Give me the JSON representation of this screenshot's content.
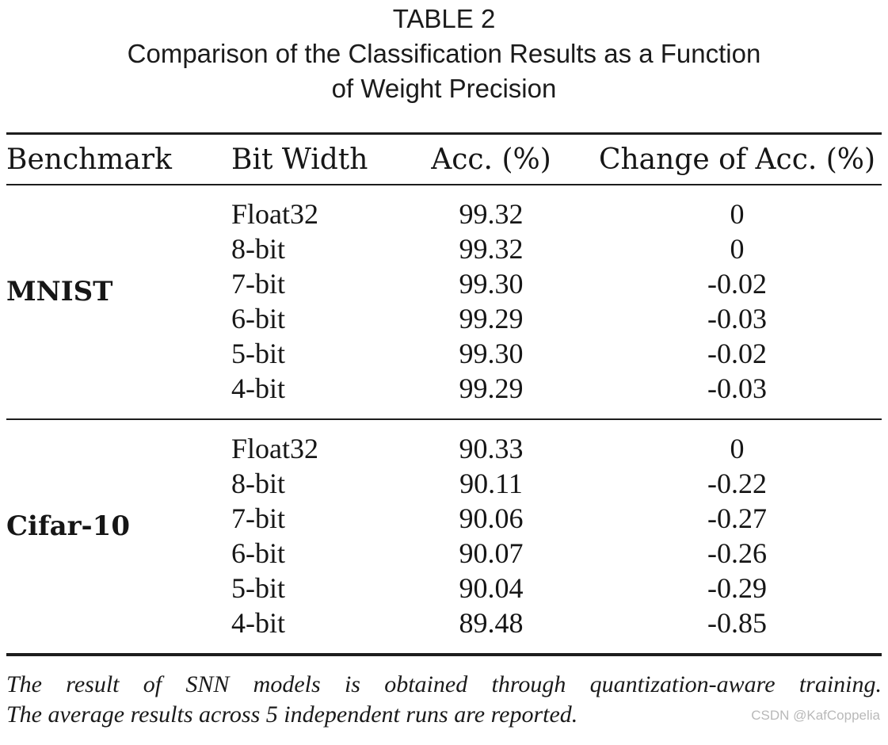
{
  "title": {
    "table_number": "TABLE 2",
    "caption_line1": "Comparison of the Classification Results as a Function",
    "caption_line2": "of Weight Precision"
  },
  "table": {
    "columns": [
      "Benchmark",
      "Bit Width",
      "Acc. (%)",
      "Change of Acc. (%)"
    ],
    "sections": [
      {
        "benchmark": "MNIST",
        "rows": [
          {
            "bit_width": "Float32",
            "acc": "99.32",
            "change": "0"
          },
          {
            "bit_width": "8-bit",
            "acc": "99.32",
            "change": "0"
          },
          {
            "bit_width": "7-bit",
            "acc": "99.30",
            "change": "-0.02"
          },
          {
            "bit_width": "6-bit",
            "acc": "99.29",
            "change": "-0.03"
          },
          {
            "bit_width": "5-bit",
            "acc": "99.30",
            "change": "-0.02"
          },
          {
            "bit_width": "4-bit",
            "acc": "99.29",
            "change": "-0.03"
          }
        ]
      },
      {
        "benchmark": "Cifar-10",
        "rows": [
          {
            "bit_width": "Float32",
            "acc": "90.33",
            "change": "0"
          },
          {
            "bit_width": "8-bit",
            "acc": "90.11",
            "change": "-0.22"
          },
          {
            "bit_width": "7-bit",
            "acc": "90.06",
            "change": "-0.27"
          },
          {
            "bit_width": "6-bit",
            "acc": "90.07",
            "change": "-0.26"
          },
          {
            "bit_width": "5-bit",
            "acc": "90.04",
            "change": "-0.29"
          },
          {
            "bit_width": "4-bit",
            "acc": "89.48",
            "change": "-0.85"
          }
        ]
      }
    ]
  },
  "footnote": {
    "line1": "The result of SNN models is obtained through quantization-aware training.",
    "line2": "The average results across 5 independent runs are reported."
  },
  "watermark": "CSDN @KafCoppelia",
  "colors": {
    "text": "#161616",
    "rule": "#1d1d1d",
    "watermark": "#b9b9b9",
    "background": "#ffffff"
  }
}
